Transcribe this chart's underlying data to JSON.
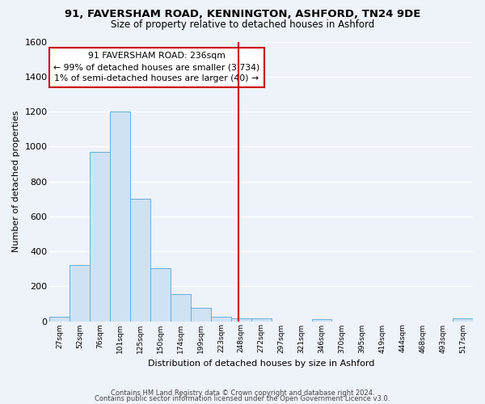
{
  "title": "91, FAVERSHAM ROAD, KENNINGTON, ASHFORD, TN24 9DE",
  "subtitle": "Size of property relative to detached houses in Ashford",
  "xlabel": "Distribution of detached houses by size in Ashford",
  "ylabel": "Number of detached properties",
  "categories": [
    "27sqm",
    "52sqm",
    "76sqm",
    "101sqm",
    "125sqm",
    "150sqm",
    "174sqm",
    "199sqm",
    "223sqm",
    "248sqm",
    "272sqm",
    "297sqm",
    "321sqm",
    "346sqm",
    "370sqm",
    "395sqm",
    "419sqm",
    "444sqm",
    "468sqm",
    "493sqm",
    "517sqm"
  ],
  "values": [
    25,
    320,
    970,
    1200,
    700,
    305,
    155,
    75,
    25,
    15,
    15,
    0,
    0,
    10,
    0,
    0,
    0,
    0,
    0,
    0,
    15
  ],
  "bar_color_fill": "#cfe2f3",
  "bar_color_edge": "#6aaed6",
  "vline_x_index": 8.85,
  "vline_color": "#cc0000",
  "annotation_title": "91 FAVERSHAM ROAD: 236sqm",
  "annotation_line1": "← 99% of detached houses are smaller (3,734)",
  "annotation_line2": "1% of semi-detached houses are larger (40) →",
  "annotation_box_edgecolor": "#cc0000",
  "ylim": [
    0,
    1600
  ],
  "yticks": [
    0,
    200,
    400,
    600,
    800,
    1000,
    1200,
    1400,
    1600
  ],
  "background_color": "#eef2f9",
  "grid_color": "#ffffff",
  "footer_line1": "Contains HM Land Registry data © Crown copyright and database right 2024.",
  "footer_line2": "Contains public sector information licensed under the Open Government Licence v3.0."
}
